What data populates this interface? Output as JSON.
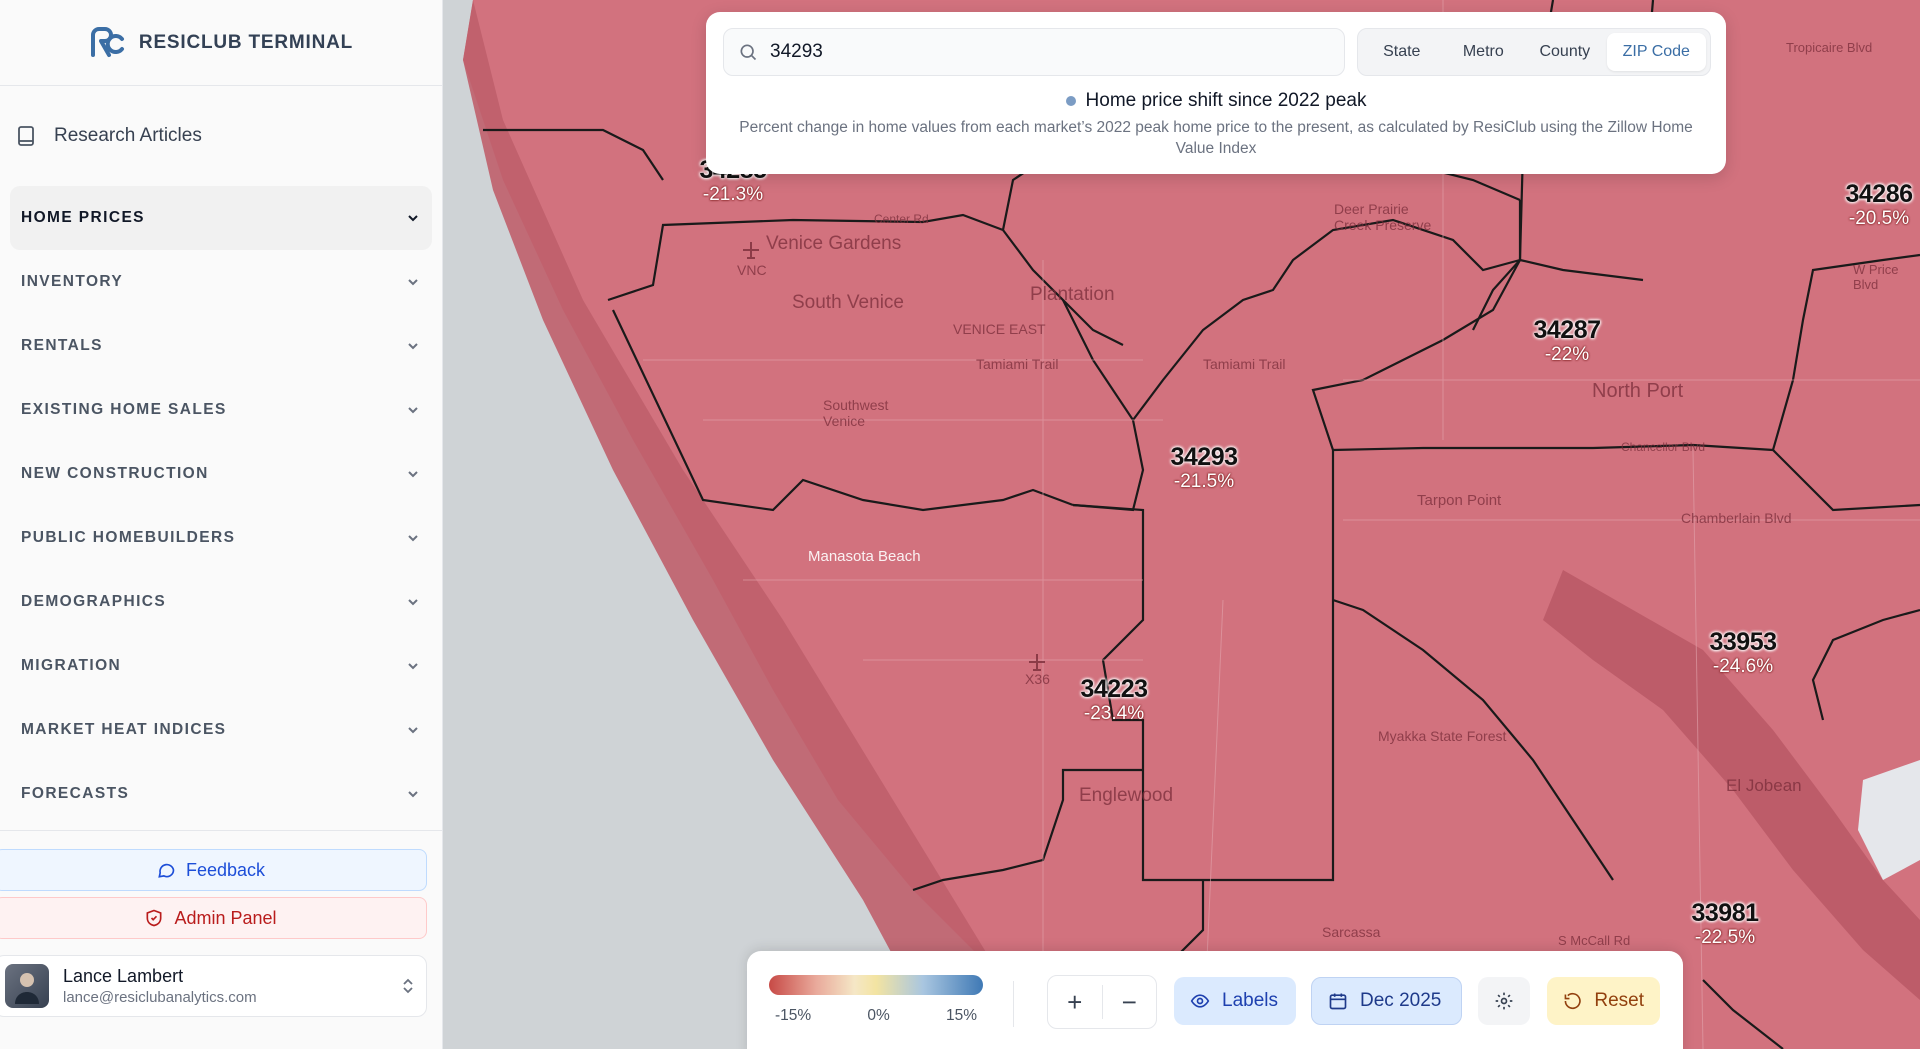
{
  "brand": {
    "name": "RESICLUB TERMINAL"
  },
  "sidebar": {
    "research_label": "Research Articles",
    "nav": [
      "HOME PRICES",
      "INVENTORY",
      "RENTALS",
      "EXISTING HOME SALES",
      "NEW CONSTRUCTION",
      "PUBLIC HOMEBUILDERS",
      "DEMOGRAPHICS",
      "MIGRATION",
      "MARKET HEAT INDICES",
      "FORECASTS"
    ],
    "feedback_label": "Feedback",
    "admin_label": "Admin Panel",
    "user": {
      "name": "Lance Lambert",
      "email": "lance@resiclubanalytics.com"
    }
  },
  "search": {
    "value": "34293"
  },
  "geo_tabs": [
    "State",
    "Metro",
    "County",
    "ZIP Code"
  ],
  "geo_active": "ZIP Code",
  "metric": {
    "title": "Home price shift since 2022 peak",
    "description": "Percent change in home values from each market’s 2022 peak home price to the present, as calculated by ResiClub using the Zillow Home Value Index"
  },
  "zips": [
    {
      "code": "34293",
      "change": "-21.5%"
    },
    {
      "code": "34223",
      "change": "-23.4%"
    },
    {
      "code": "34287",
      "change": "-22%"
    },
    {
      "code": "33953",
      "change": "-24.6%"
    },
    {
      "code": "33981",
      "change": "-22.5%"
    },
    {
      "code": "34286",
      "change": "-20.5%"
    },
    {
      "code": "34285",
      "change": "-21.3%"
    }
  ],
  "places": [
    "Venice Gardens",
    "South Venice",
    "Plantation",
    "VENICE EAST",
    "Tamiami Trail",
    "Tamiami Trail",
    "North Port",
    "Deer Prairie Creek Preserve",
    "Manasota Beach",
    "Englewood",
    "Myakka State Forest",
    "Tarpon Point",
    "Chamberlain Blvd",
    "El Jobean",
    "Sarcassa",
    "VNC",
    "X36",
    "Center Rd",
    "Tropicaire Blvd",
    "W Price Blvd",
    "Southwest Venice",
    "S McCall Rd",
    "Chancellor Blvd"
  ],
  "legend": {
    "ticks": [
      "-15%",
      "0%",
      "15%"
    ],
    "colors": {
      "negative": "#c74a46",
      "neutral": "#f3e4a2",
      "positive": "#3f79b5"
    }
  },
  "controls": {
    "zoom_in": "+",
    "zoom_out": "−",
    "labels": "Labels",
    "date": "Dec 2025",
    "reset": "Reset"
  },
  "colors": {
    "map_fill": "#d2727e",
    "water": "#cfd3d6",
    "accent": "#3b6ea5"
  }
}
